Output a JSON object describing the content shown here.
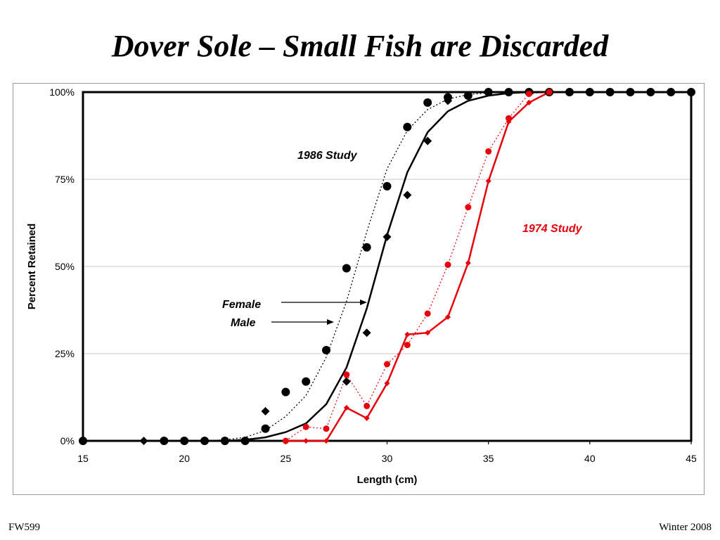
{
  "slide": {
    "title": "Dover Sole – Small Fish are Discarded",
    "footer_left": "FW599",
    "footer_right": "Winter 2008"
  },
  "chart_data": {
    "type": "scatter",
    "xlabel": "Length (cm)",
    "ylabel": "Percent Retained",
    "xlim": [
      15,
      45
    ],
    "ylim": [
      0,
      100
    ],
    "xticks": [
      15,
      20,
      25,
      30,
      35,
      40,
      45
    ],
    "yticks": [
      0,
      25,
      50,
      75,
      100
    ],
    "ytick_labels": [
      "0%",
      "25%",
      "50%",
      "75%",
      "100%"
    ],
    "grid": "horizontal",
    "series": [
      {
        "group": "1986",
        "sex": "female",
        "kind": "points",
        "marker": "circle",
        "color": "#000000",
        "x": [
          15,
          19,
          20,
          21,
          22,
          23,
          24,
          25,
          26,
          27,
          28,
          29,
          30,
          31,
          32,
          33,
          34,
          35,
          36,
          37,
          38,
          39,
          40,
          41,
          42,
          43,
          44,
          45
        ],
        "y": [
          0,
          0,
          0,
          0,
          0,
          0,
          3.5,
          14,
          17,
          26,
          49.5,
          55.5,
          73,
          90,
          97,
          98.5,
          99,
          100,
          100,
          100,
          100,
          100,
          100,
          100,
          100,
          100,
          100,
          100
        ]
      },
      {
        "group": "1986",
        "sex": "male",
        "kind": "points",
        "marker": "diamond",
        "color": "#000000",
        "x": [
          18,
          24,
          28,
          29,
          30,
          31,
          32,
          33
        ],
        "y": [
          0,
          8.5,
          17,
          31,
          58.5,
          70.5,
          86,
          97.5
        ]
      },
      {
        "group": "1986",
        "sex": "female",
        "kind": "fit",
        "style": "dotted",
        "color": "#000000",
        "x": [
          21,
          22,
          23,
          24,
          25,
          26,
          27,
          28,
          29,
          30,
          31,
          32,
          33,
          34,
          35,
          36
        ],
        "y": [
          0,
          0.3,
          1,
          3,
          7,
          13,
          24,
          40,
          60,
          78,
          89,
          95,
          98,
          99.3,
          99.8,
          100
        ]
      },
      {
        "group": "1986",
        "sex": "male",
        "kind": "fit",
        "style": "solid",
        "color": "#000000",
        "x": [
          15,
          22,
          23,
          24,
          25,
          26,
          27,
          28,
          29,
          30,
          31,
          32,
          33,
          34,
          35,
          36,
          37,
          38,
          45
        ],
        "y": [
          0,
          0,
          0.3,
          1,
          2.5,
          5,
          10.5,
          21,
          38,
          59,
          77,
          88.5,
          94.5,
          97.5,
          99,
          99.7,
          100,
          100,
          100
        ]
      },
      {
        "group": "1974",
        "sex": "female",
        "kind": "points_dotted",
        "marker": "circle",
        "color": "#e8000b",
        "x": [
          25,
          26,
          27,
          28,
          29,
          30,
          31,
          32,
          33,
          34,
          35,
          36,
          37,
          38
        ],
        "y": [
          0,
          4,
          3.5,
          19,
          10,
          22,
          27.5,
          36.5,
          50.5,
          67,
          83,
          92.5,
          99.5,
          100
        ]
      },
      {
        "group": "1974",
        "sex": "male",
        "kind": "points_solid",
        "marker": "diamond",
        "color": "#e8000b",
        "x": [
          25,
          26,
          27,
          28,
          29,
          30,
          31,
          32,
          33,
          34,
          35,
          36,
          37,
          38
        ],
        "y": [
          0,
          0,
          0,
          9.5,
          6.5,
          16.5,
          30.5,
          31,
          35.5,
          51,
          74.5,
          91.5,
          97,
          100
        ]
      }
    ],
    "annotations": [
      {
        "text": "1986 Study",
        "color": "#000000"
      },
      {
        "text": "1974 Study",
        "color": "#e8000b"
      },
      {
        "text": "Female"
      },
      {
        "text": "Male"
      }
    ]
  }
}
